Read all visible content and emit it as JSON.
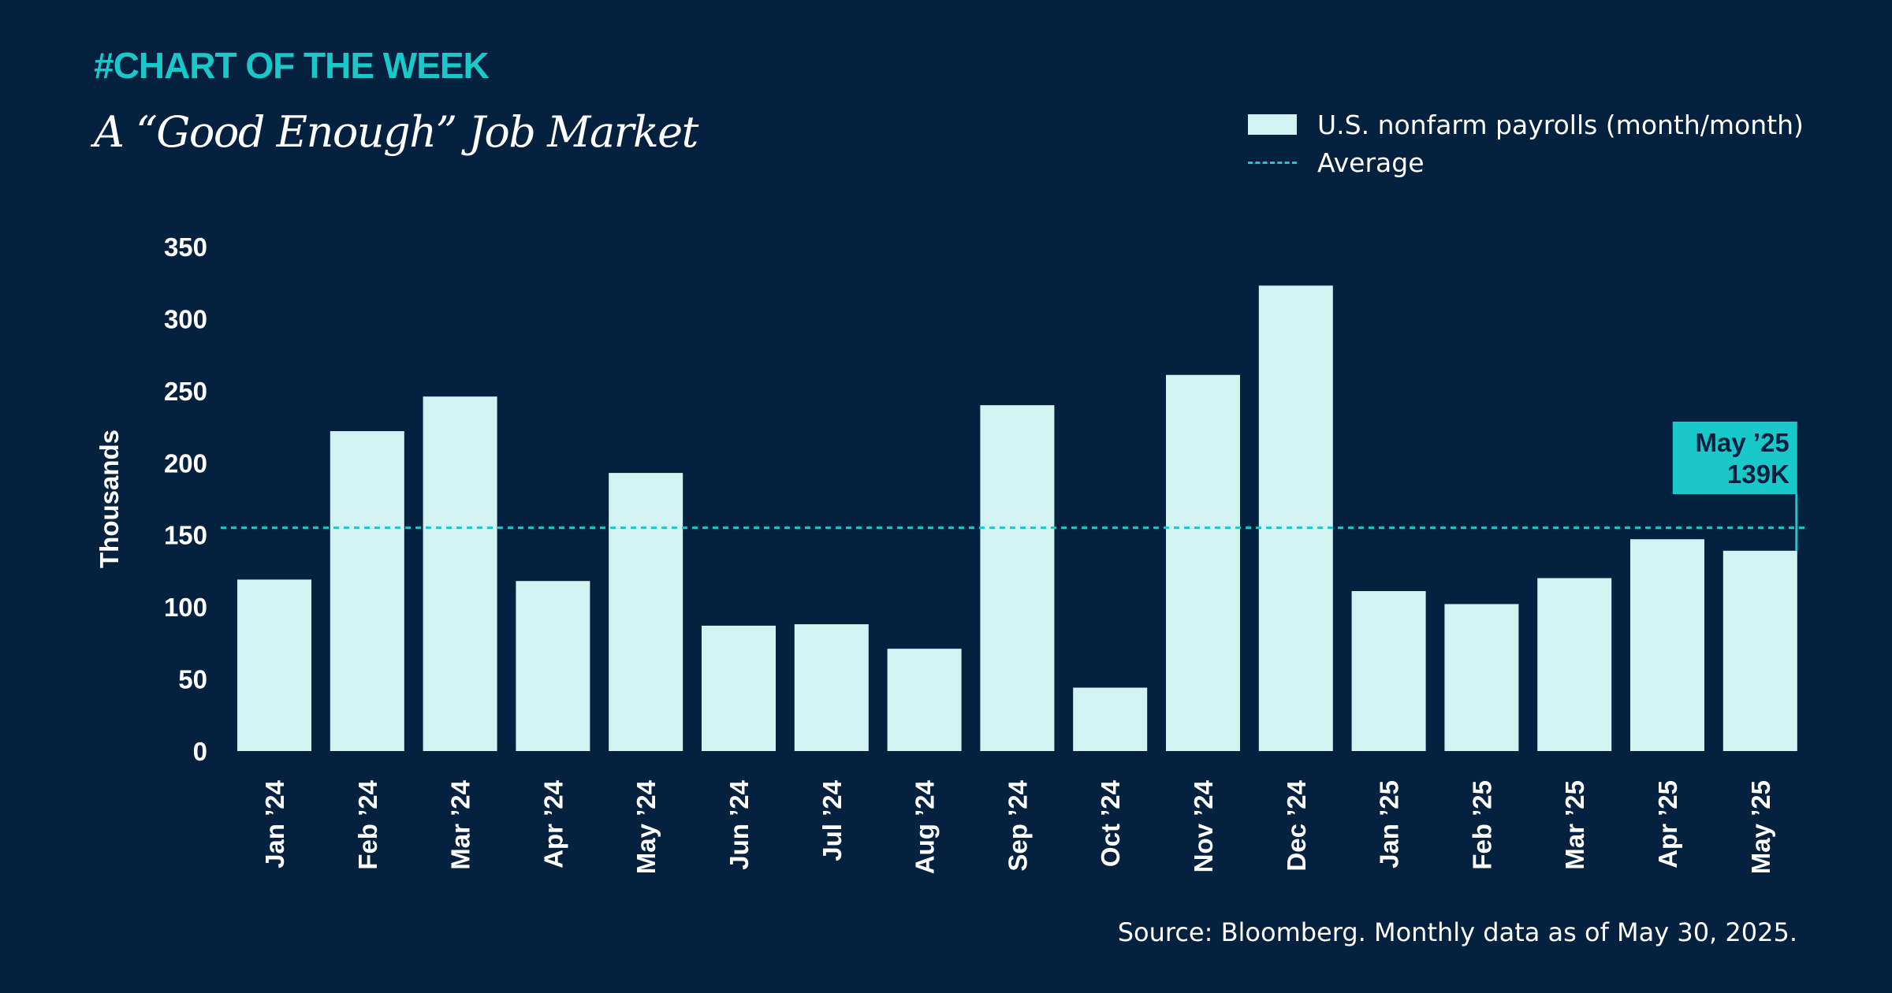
{
  "header": {
    "kicker": "#CHART OF THE WEEK",
    "title": "A “Good Enough” Job Market"
  },
  "legend": {
    "bar_label": "U.S. nonfarm payrolls (month/month)",
    "line_label": "Average"
  },
  "callout": {
    "month": "May ’25",
    "value": "139K"
  },
  "footer": {
    "source": "Source: Bloomberg. Monthly data as of May 30, 2025."
  },
  "colors": {
    "background": "#052140",
    "bar": "#d3f3f3",
    "accent": "#19c9c9",
    "text": "#ffffff",
    "callout_text": "#052140"
  },
  "chart_data": {
    "type": "bar",
    "ylabel": "Thousands",
    "xlabel": "",
    "ylim": [
      0,
      350
    ],
    "yticks": [
      0,
      50,
      100,
      150,
      200,
      250,
      300,
      350
    ],
    "grid": false,
    "legend_position": "top-right",
    "categories": [
      "Jan ’24",
      "Feb ’24",
      "Mar ’24",
      "Apr ’24",
      "May ’24",
      "Jun ’24",
      "Jul ’24",
      "Aug ’24",
      "Sep ’24",
      "Oct ’24",
      "Nov ’24",
      "Dec ’24",
      "Jan ’25",
      "Feb ’25",
      "Mar ’25",
      "Apr ’25",
      "May ’25"
    ],
    "series": [
      {
        "name": "U.S. nonfarm payrolls (month/month)",
        "values": [
          119,
          222,
          246,
          118,
          193,
          87,
          88,
          71,
          240,
          44,
          261,
          323,
          111,
          102,
          120,
          147,
          139
        ]
      }
    ],
    "average": 155
  }
}
